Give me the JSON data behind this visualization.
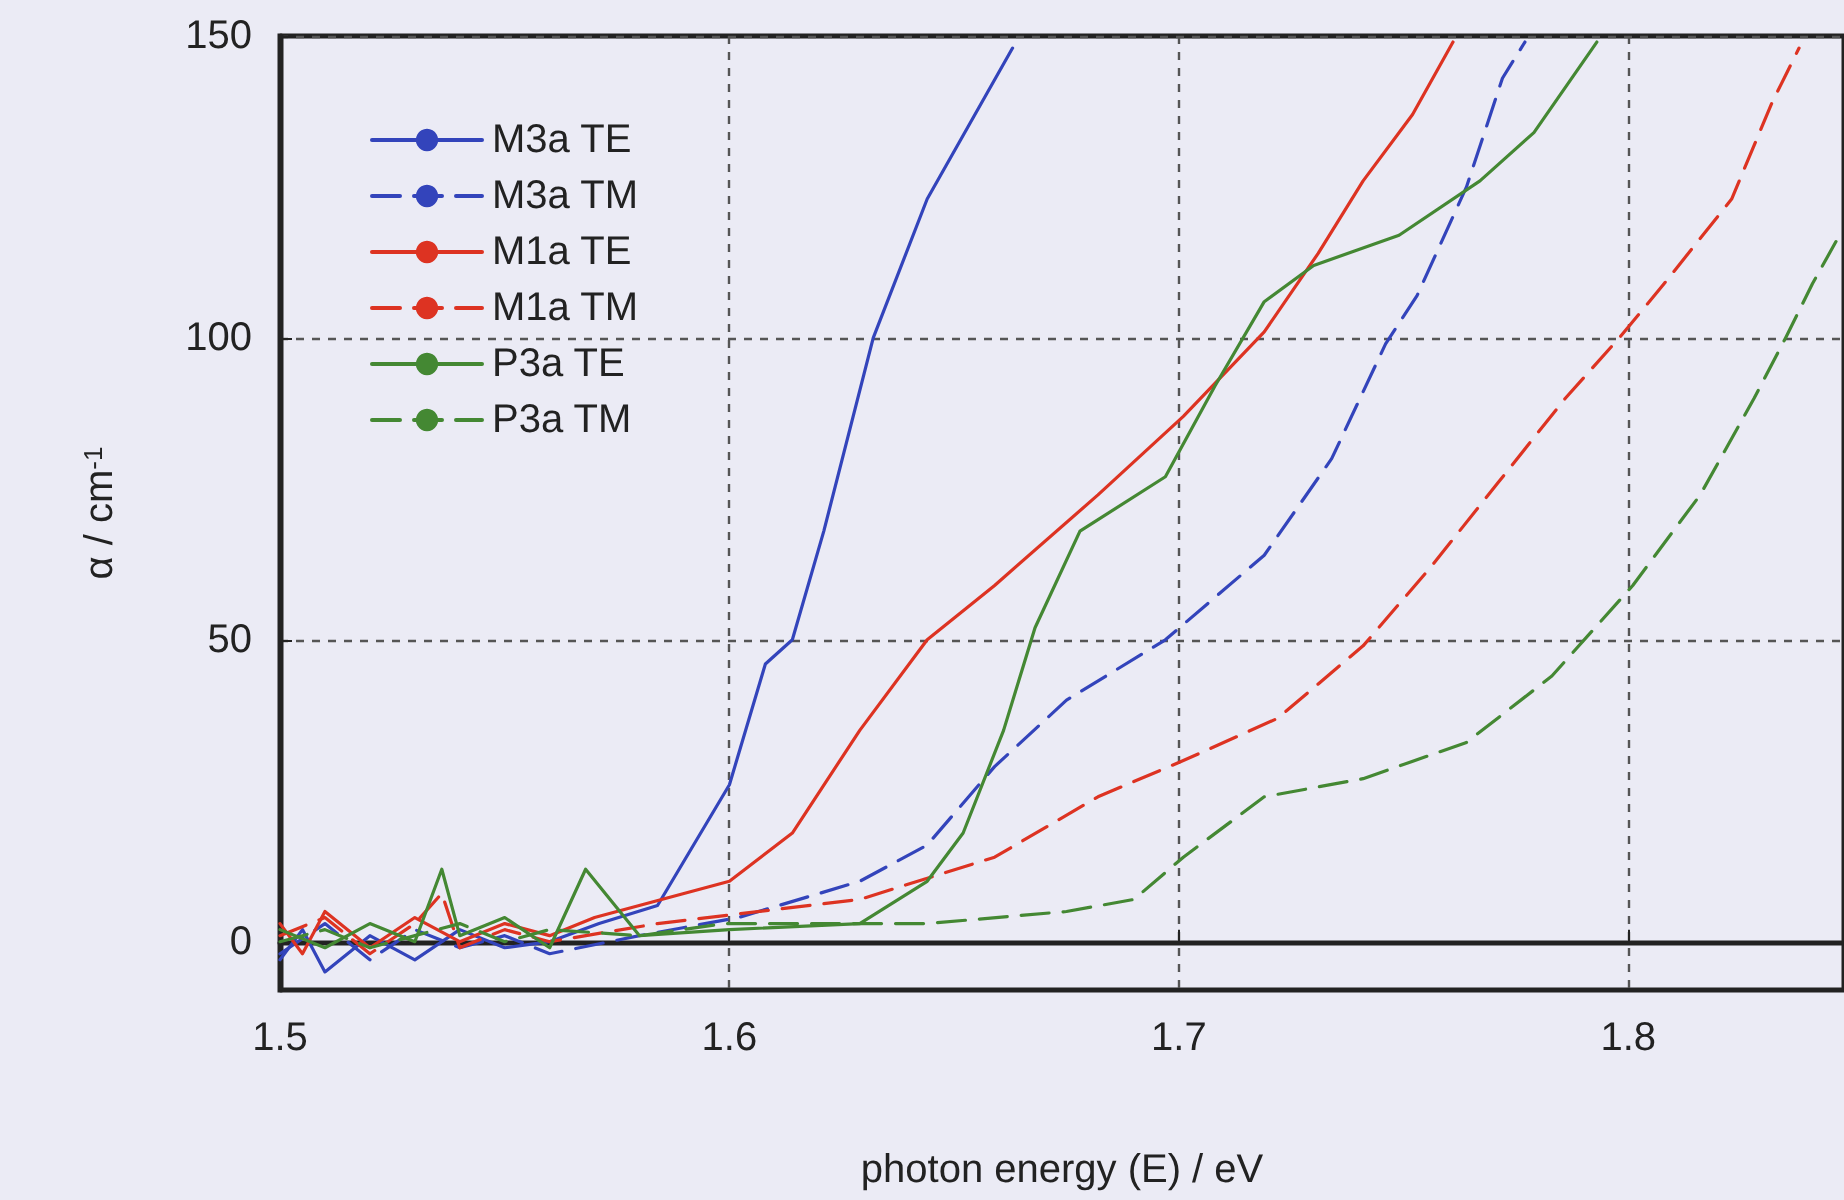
{
  "chart_data": {
    "type": "line",
    "xlabel": "photon energy (E) / eV",
    "ylabel": "α / cm$^{-1}$",
    "xlim": [
      1.5,
      1.848
    ],
    "xticks": [
      1.5,
      1.6,
      1.7,
      1.8
    ],
    "ylim": [
      -8,
      150
    ],
    "yticks": [
      0,
      50,
      100,
      150
    ],
    "grid": true,
    "legend": "top left",
    "series": [
      {
        "name": "M3a TE",
        "color": "#3344bb",
        "line_style": "solid",
        "x": [
          1.5,
          1.505,
          1.51,
          1.52,
          1.53,
          1.54,
          1.55,
          1.56,
          1.571,
          1.584,
          1.6,
          1.608,
          1.614,
          1.621,
          1.632,
          1.644,
          1.663
        ],
        "values": [
          -3,
          2,
          -5,
          1,
          -3,
          2,
          -1,
          0,
          3,
          6,
          26,
          46,
          50,
          68,
          100,
          123,
          148
        ]
      },
      {
        "name": "M3a TM",
        "color": "#3344bb",
        "line_style": "dashed",
        "x": [
          1.5,
          1.51,
          1.52,
          1.53,
          1.54,
          1.55,
          1.56,
          1.58,
          1.602,
          1.629,
          1.644,
          1.659,
          1.675,
          1.697,
          1.719,
          1.734,
          1.746,
          1.753,
          1.764,
          1.772,
          1.777
        ],
        "values": [
          -2,
          3,
          -3,
          2,
          -1,
          1,
          -2,
          1,
          4,
          10,
          16,
          29,
          40,
          50,
          64,
          80,
          99,
          107,
          125,
          143,
          149
        ]
      },
      {
        "name": "M1a TE",
        "color": "#dd3322",
        "line_style": "solid",
        "x": [
          1.5,
          1.505,
          1.51,
          1.52,
          1.53,
          1.54,
          1.55,
          1.56,
          1.57,
          1.6,
          1.614,
          1.629,
          1.644,
          1.659,
          1.682,
          1.701,
          1.719,
          1.731,
          1.741,
          1.752,
          1.761
        ],
        "values": [
          3,
          -2,
          5,
          -1,
          4,
          0,
          3,
          1,
          4,
          10,
          18,
          35,
          50,
          59,
          74,
          87,
          101,
          114,
          126,
          137,
          149
        ]
      },
      {
        "name": "M1a TM",
        "color": "#dd3322",
        "line_style": "dashed",
        "x": [
          1.5,
          1.51,
          1.52,
          1.53,
          1.536,
          1.54,
          1.55,
          1.56,
          1.584,
          1.629,
          1.659,
          1.682,
          1.701,
          1.722,
          1.741,
          1.756,
          1.771,
          1.786,
          1.798,
          1.808,
          1.823,
          1.832,
          1.838
        ],
        "values": [
          1,
          4,
          -2,
          3,
          8,
          -1,
          2,
          0,
          3,
          7,
          14,
          24,
          30,
          37,
          49,
          62,
          76,
          90,
          100,
          109,
          123,
          139,
          148
        ]
      },
      {
        "name": "P3a TE",
        "color": "#448833",
        "line_style": "solid",
        "x": [
          1.5,
          1.51,
          1.52,
          1.53,
          1.536,
          1.54,
          1.55,
          1.56,
          1.568,
          1.58,
          1.6,
          1.629,
          1.644,
          1.652,
          1.661,
          1.668,
          1.678,
          1.697,
          1.708,
          1.719,
          1.73,
          1.749,
          1.767,
          1.779,
          1.793
        ],
        "values": [
          2,
          -1,
          3,
          0,
          12,
          1,
          4,
          -1,
          12,
          1,
          2,
          3,
          10,
          18,
          35,
          52,
          68,
          77,
          92,
          106,
          112,
          117,
          126,
          134,
          149
        ]
      },
      {
        "name": "P3a TM",
        "color": "#448833",
        "line_style": "dashed",
        "x": [
          1.5,
          1.51,
          1.52,
          1.53,
          1.54,
          1.55,
          1.56,
          1.58,
          1.599,
          1.644,
          1.675,
          1.69,
          1.701,
          1.719,
          1.741,
          1.764,
          1.783,
          1.801,
          1.816,
          1.828,
          1.835,
          1.841,
          1.847
        ],
        "values": [
          0,
          2,
          -1,
          1,
          3,
          0,
          2,
          1,
          3,
          3,
          5,
          7,
          14,
          24,
          27,
          33,
          44,
          59,
          74,
          90,
          100,
          109,
          117
        ]
      }
    ]
  }
}
